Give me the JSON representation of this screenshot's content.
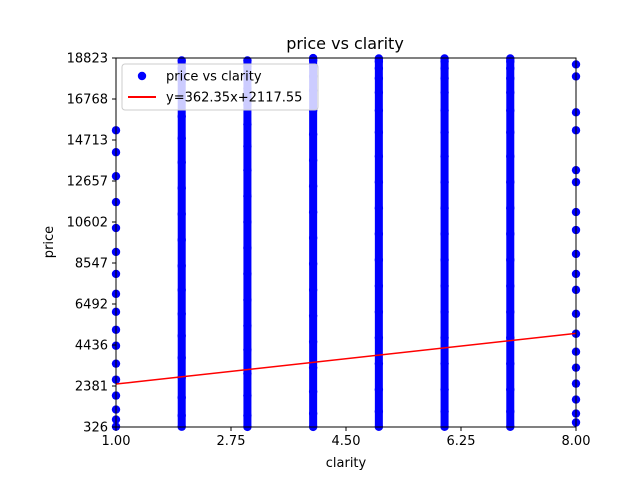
{
  "chart_data": {
    "type": "scatter",
    "title": "price vs clarity",
    "xlabel": "clarity",
    "ylabel": "price",
    "xlim": [
      1.0,
      8.0
    ],
    "ylim": [
      326,
      18823
    ],
    "xticks": [
      "1.00",
      "2.75",
      "4.50",
      "6.25",
      "8.00"
    ],
    "xtick_values": [
      1.0,
      2.75,
      4.5,
      6.25,
      8.0
    ],
    "yticks": [
      "326",
      "2381",
      "4436",
      "6492",
      "8547",
      "10602",
      "12657",
      "14713",
      "16768",
      "18823"
    ],
    "ytick_values": [
      326,
      2381,
      4436,
      6492,
      8547,
      10602,
      12657,
      14713,
      16768,
      18823
    ],
    "grid": false,
    "legend_position": "upper-left",
    "series": [
      {
        "name": "price vs clarity",
        "kind": "scatter",
        "color": "#0000ff",
        "x": [
          1,
          1,
          1,
          1,
          1,
          1,
          1,
          1,
          1,
          1,
          1,
          1,
          1,
          1,
          1,
          1,
          1,
          2,
          2,
          2,
          2,
          2,
          2,
          2,
          2,
          2,
          2,
          2,
          2,
          2,
          2,
          2,
          2,
          2,
          2,
          2,
          3,
          3,
          3,
          3,
          3,
          3,
          3,
          3,
          3,
          3,
          3,
          3,
          3,
          3,
          3,
          3,
          3,
          3,
          3,
          4,
          4,
          4,
          4,
          4,
          4,
          4,
          4,
          4,
          4,
          4,
          4,
          4,
          4,
          4,
          4,
          4,
          4,
          4,
          5,
          5,
          5,
          5,
          5,
          5,
          5,
          5,
          5,
          5,
          5,
          5,
          5,
          5,
          5,
          5,
          5,
          5,
          5,
          6,
          6,
          6,
          6,
          6,
          6,
          6,
          6,
          6,
          6,
          6,
          6,
          6,
          6,
          6,
          6,
          6,
          6,
          6,
          7,
          7,
          7,
          7,
          7,
          7,
          7,
          7,
          7,
          7,
          7,
          7,
          7,
          7,
          7,
          7,
          7,
          7,
          7,
          8,
          8,
          8,
          8,
          8,
          8,
          8,
          8,
          8,
          8,
          8,
          8,
          8,
          8,
          8,
          8,
          8,
          8,
          8
        ],
        "y": [
          345,
          700,
          1200,
          1900,
          2700,
          3500,
          4400,
          5200,
          6100,
          7000,
          8000,
          9100,
          10300,
          11600,
          12900,
          14100,
          15200,
          340,
          900,
          1800,
          2800,
          3800,
          4900,
          6000,
          7200,
          8400,
          9700,
          11000,
          12300,
          13600,
          14800,
          15900,
          16900,
          17700,
          18300,
          18700,
          330,
          900,
          1900,
          3000,
          4200,
          5400,
          6700,
          8000,
          9300,
          10600,
          11900,
          13200,
          14400,
          15500,
          16500,
          17300,
          17900,
          18400,
          18700,
          330,
          1000,
          2100,
          3300,
          4600,
          5900,
          7200,
          8500,
          9800,
          11100,
          12400,
          13700,
          15000,
          16200,
          17200,
          17900,
          18400,
          18700,
          18818,
          335,
          1100,
          2200,
          3500,
          4800,
          6100,
          7400,
          8700,
          10000,
          11300,
          12600,
          13900,
          15100,
          16200,
          17100,
          17800,
          18300,
          18650,
          18800,
          335,
          1100,
          2200,
          3500,
          4800,
          6100,
          7400,
          8700,
          10000,
          11300,
          12600,
          13900,
          15100,
          16200,
          17100,
          17800,
          18300,
          18650,
          18800,
          338,
          1100,
          2200,
          3500,
          4800,
          6100,
          7400,
          8700,
          10000,
          11300,
          12600,
          13900,
          15100,
          16200,
          17100,
          17800,
          18300,
          18650,
          18800,
          552,
          1000,
          1700,
          2500,
          3300,
          4100,
          5000,
          6000,
          7200,
          8000,
          9000,
          10200,
          11100,
          12600,
          13200,
          15200,
          16100,
          17900,
          18500
        ]
      },
      {
        "name": "y=362.35x+2117.55",
        "kind": "line",
        "color": "#ff0000",
        "slope": 362.35,
        "intercept": 2117.55,
        "x": [
          1.0,
          8.0
        ],
        "y": [
          2479.9,
          5016.35
        ]
      }
    ]
  }
}
